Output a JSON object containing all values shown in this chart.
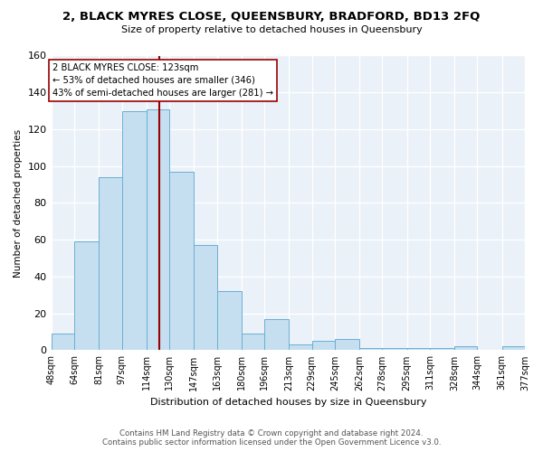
{
  "title": "2, BLACK MYRES CLOSE, QUEENSBURY, BRADFORD, BD13 2FQ",
  "subtitle": "Size of property relative to detached houses in Queensbury",
  "xlabel": "Distribution of detached houses by size in Queensbury",
  "ylabel": "Number of detached properties",
  "bar_color": "#c5dff0",
  "bar_edge_color": "#6aafd4",
  "background_color": "#ffffff",
  "plot_bg_color": "#eaf1f8",
  "grid_color": "#ffffff",
  "bin_edges": [
    48,
    64,
    81,
    97,
    114,
    130,
    147,
    163,
    180,
    196,
    213,
    229,
    245,
    262,
    278,
    295,
    311,
    328,
    344,
    361,
    377
  ],
  "bin_labels": [
    "48sqm",
    "64sqm",
    "81sqm",
    "97sqm",
    "114sqm",
    "130sqm",
    "147sqm",
    "163sqm",
    "180sqm",
    "196sqm",
    "213sqm",
    "229sqm",
    "245sqm",
    "262sqm",
    "278sqm",
    "295sqm",
    "311sqm",
    "328sqm",
    "344sqm",
    "361sqm",
    "377sqm"
  ],
  "counts": [
    9,
    59,
    94,
    130,
    131,
    97,
    57,
    32,
    9,
    17,
    3,
    5,
    6,
    1,
    1,
    1,
    1,
    2,
    0,
    2
  ],
  "vline_x": 123,
  "vline_color": "#990000",
  "annotation_text": "2 BLACK MYRES CLOSE: 123sqm\n← 53% of detached houses are smaller (346)\n43% of semi-detached houses are larger (281) →",
  "annotation_box_edge": "#990000",
  "ylim": [
    0,
    160
  ],
  "yticks": [
    0,
    20,
    40,
    60,
    80,
    100,
    120,
    140,
    160
  ],
  "footer_line1": "Contains HM Land Registry data © Crown copyright and database right 2024.",
  "footer_line2": "Contains public sector information licensed under the Open Government Licence v3.0."
}
